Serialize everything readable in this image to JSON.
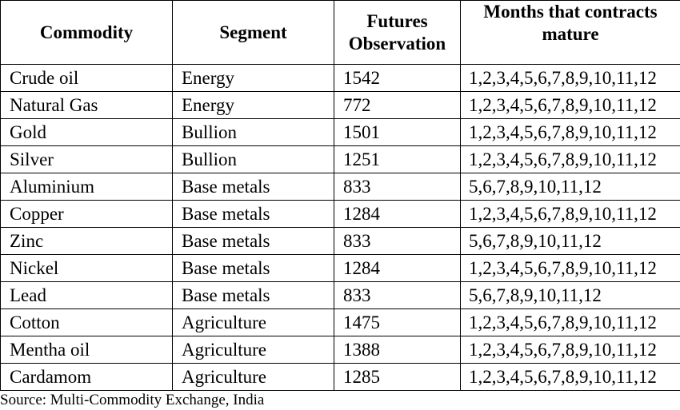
{
  "table": {
    "headers": {
      "commodity": "Commodity",
      "segment": "Segment",
      "futures_line1": "Futures",
      "futures_line2": "Observation",
      "months_line1": "Months that contracts",
      "months_line2": "mature"
    },
    "rows": [
      {
        "commodity": "Crude oil",
        "segment": "Energy",
        "observations": "1542",
        "months": "1,2,3,4,5,6,7,8,9,10,11,12"
      },
      {
        "commodity": "Natural Gas",
        "segment": "Energy",
        "observations": "772",
        "months": "1,2,3,4,5,6,7,8,9,10,11,12"
      },
      {
        "commodity": "Gold",
        "segment": "Bullion",
        "observations": "1501",
        "months": "1,2,3,4,5,6,7,8,9,10,11,12"
      },
      {
        "commodity": "Silver",
        "segment": "Bullion",
        "observations": "1251",
        "months": "1,2,3,4,5,6,7,8,9,10,11,12"
      },
      {
        "commodity": "Aluminium",
        "segment": "Base metals",
        "observations": "833",
        "months": "5,6,7,8,9,10,11,12"
      },
      {
        "commodity": "Copper",
        "segment": "Base metals",
        "observations": "1284",
        "months": "1,2,3,4,5,6,7,8,9,10,11,12"
      },
      {
        "commodity": "Zinc",
        "segment": "Base metals",
        "observations": "833",
        "months": "5,6,7,8,9,10,11,12"
      },
      {
        "commodity": "Nickel",
        "segment": "Base metals",
        "observations": "1284",
        "months": "1,2,3,4,5,6,7,8,9,10,11,12"
      },
      {
        "commodity": "Lead",
        "segment": "Base metals",
        "observations": "833",
        "months": "5,6,7,8,9,10,11,12"
      },
      {
        "commodity": "Cotton",
        "segment": "Agriculture",
        "observations": "1475",
        "months": "1,2,3,4,5,6,7,8,9,10,11,12"
      },
      {
        "commodity": "Mentha oil",
        "segment": "Agriculture",
        "observations": "1388",
        "months": "1,2,3,4,5,6,7,8,9,10,11,12"
      },
      {
        "commodity": "Cardamom",
        "segment": "Agriculture",
        "observations": "1285",
        "months": "1,2,3,4,5,6,7,8,9,10,11,12"
      }
    ]
  },
  "source": "Source: Multi-Commodity Exchange, India"
}
